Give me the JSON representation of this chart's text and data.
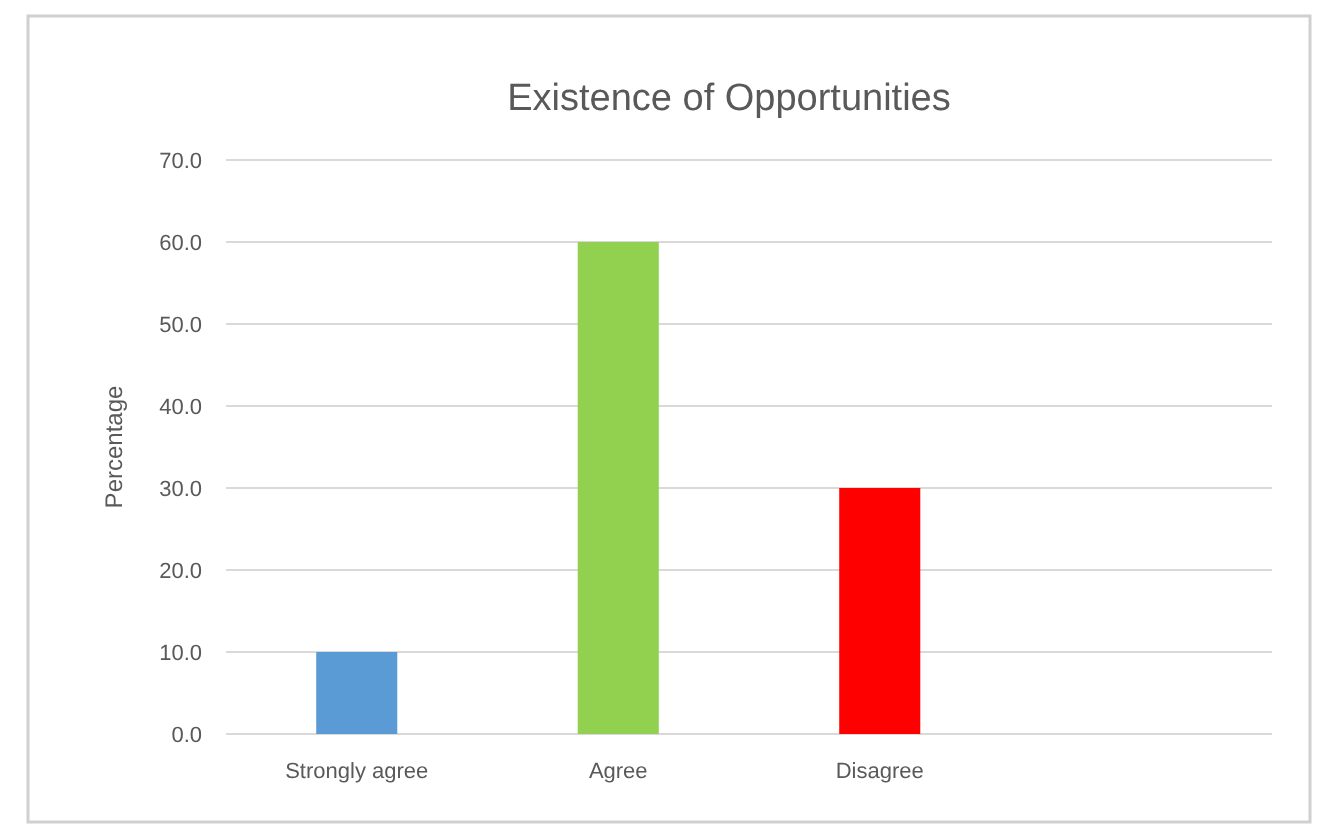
{
  "chart_data": {
    "type": "bar",
    "title": "Existence of Opportunities",
    "ylabel": "Percentage",
    "categories": [
      "Strongly agree",
      "Agree",
      "Disagree",
      null
    ],
    "values": [
      10,
      60,
      30,
      null
    ],
    "colors": [
      "#5b9bd5",
      "#92d050",
      "#ff0000",
      null
    ],
    "ylim": [
      0,
      70
    ],
    "yticks": [
      {
        "value": 0,
        "label": "0.0"
      },
      {
        "value": 10,
        "label": "10.0"
      },
      {
        "value": 20,
        "label": "20.0"
      },
      {
        "value": 30,
        "label": "30.0"
      },
      {
        "value": 40,
        "label": "40.0"
      },
      {
        "value": 50,
        "label": "50.0"
      },
      {
        "value": 60,
        "label": "60.0"
      },
      {
        "value": 70,
        "label": "70.0"
      }
    ],
    "grid": "y"
  }
}
